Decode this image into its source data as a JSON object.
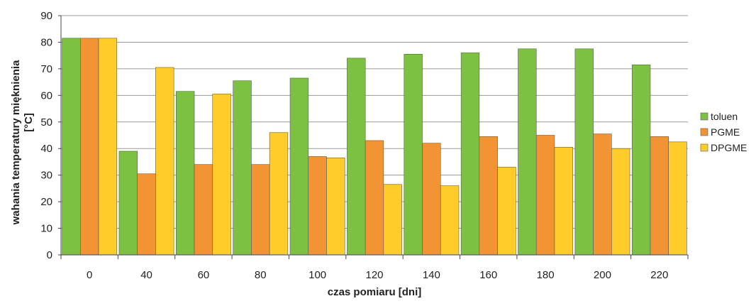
{
  "chart_data": {
    "type": "bar",
    "title": "",
    "xlabel": "czas pomiaru [dni]",
    "ylabel_line1": "wahania temperatury mięknienia",
    "ylabel_line2": "[°C]",
    "ylim": [
      0,
      90
    ],
    "yticks": [
      0,
      10,
      20,
      30,
      40,
      50,
      60,
      70,
      80,
      90
    ],
    "grid": "horizontal",
    "legend_position": "right",
    "categories": [
      "0",
      "40",
      "60",
      "80",
      "100",
      "120",
      "140",
      "160",
      "180",
      "200",
      "220"
    ],
    "series": [
      {
        "name": "toluen",
        "color": "#7DC142",
        "values": [
          81.5,
          39,
          61.5,
          65.5,
          66.5,
          74,
          75.5,
          76,
          77.5,
          77.5,
          71.5
        ]
      },
      {
        "name": "PGME",
        "color": "#F29433",
        "values": [
          81.5,
          30.5,
          34,
          34,
          37,
          43,
          42,
          44.5,
          45,
          45.5,
          44.5
        ]
      },
      {
        "name": "DPGME",
        "color": "#FFCC29",
        "values": [
          81.5,
          70.5,
          60.5,
          46,
          36.5,
          26.5,
          26,
          33,
          40.5,
          40,
          42.5
        ]
      }
    ]
  }
}
